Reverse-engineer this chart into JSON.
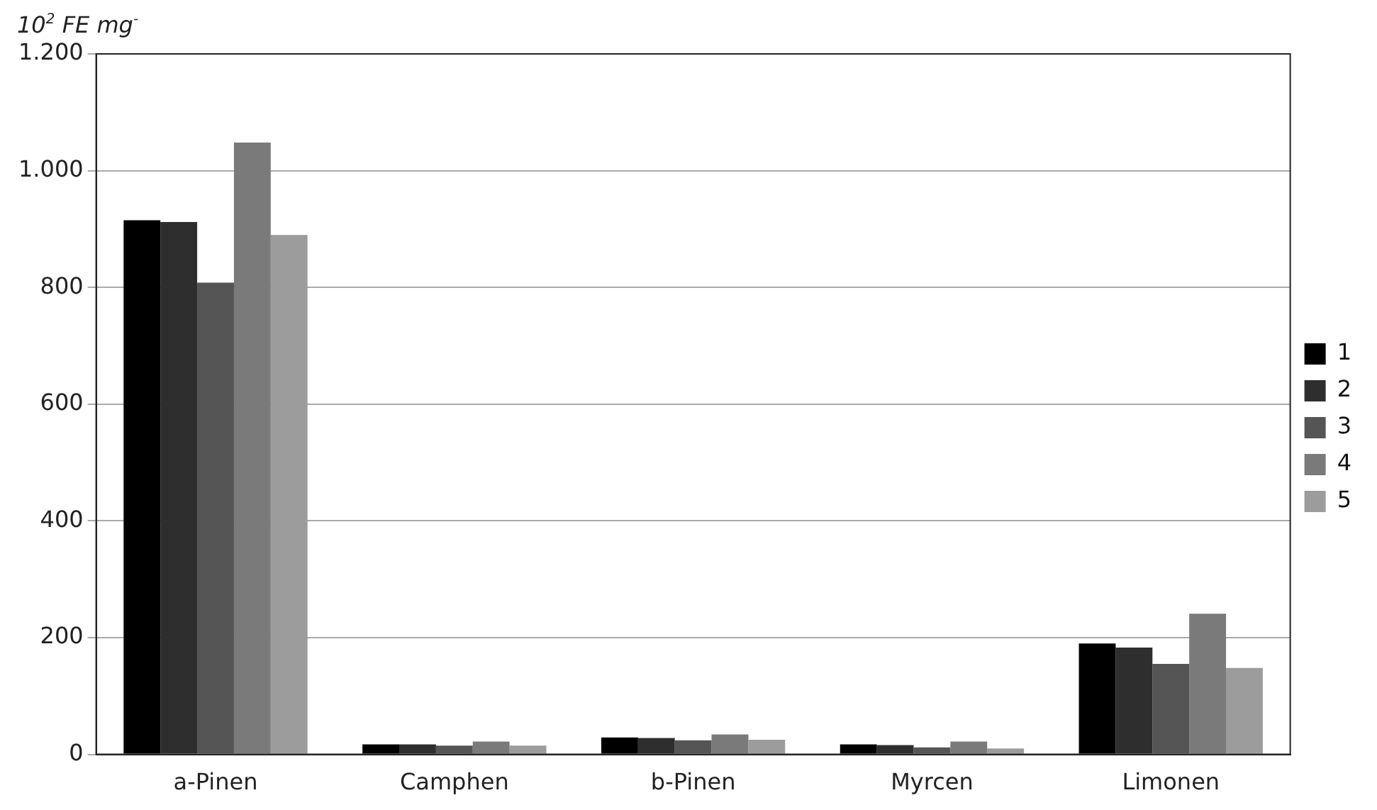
{
  "chart_data": {
    "type": "bar",
    "ylabel": "10$^{2}$ FE mg$^{-}$",
    "categories": [
      "a-Pinen",
      "Camphen",
      "b-Pinen",
      "Myrcen",
      "Limonen"
    ],
    "series": [
      {
        "name": "1",
        "color": "#000000",
        "values": [
          915,
          17,
          29,
          17,
          190
        ]
      },
      {
        "name": "2",
        "color": "#2e2e2e",
        "values": [
          912,
          17,
          28,
          16,
          183
        ]
      },
      {
        "name": "3",
        "color": "#555555",
        "values": [
          808,
          15,
          24,
          12,
          155
        ]
      },
      {
        "name": "4",
        "color": "#7a7a7a",
        "values": [
          1048,
          22,
          34,
          22,
          241
        ]
      },
      {
        "name": "5",
        "color": "#9c9c9c",
        "values": [
          890,
          15,
          25,
          10,
          148
        ]
      }
    ],
    "ylim": [
      0,
      1200
    ],
    "yticks": [
      0,
      200,
      400,
      600,
      800,
      {
        "value": 1000,
        "label": "1.000"
      },
      {
        "value": 1200,
        "label": "1.200"
      }
    ],
    "grid": "y",
    "legend": "right"
  }
}
